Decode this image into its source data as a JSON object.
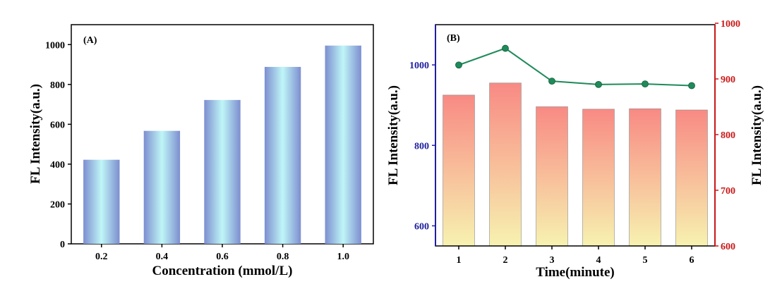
{
  "chart_data": [
    {
      "type": "bar",
      "panel_label": "(A)",
      "categories": [
        "0.2",
        "0.4",
        "0.6",
        "0.8",
        "1.0"
      ],
      "values": [
        422,
        567,
        722,
        888,
        995
      ],
      "xlabel": "Concentration (mmol/L)",
      "ylabel": "FL Intensity(a.u.)",
      "ylim": [
        0,
        1100
      ],
      "yticks": [
        "0",
        "200",
        "400",
        "600",
        "800",
        "1000"
      ],
      "grid": false,
      "colors": {
        "bar_edge": "#7b8fd0",
        "bar_center": "#b9f3f6"
      }
    },
    {
      "type": "bar+line",
      "panel_label": "(B)",
      "categories": [
        "1",
        "2",
        "3",
        "4",
        "5",
        "6"
      ],
      "xlabel": "Time(minute)",
      "bars": {
        "values": [
          925,
          955,
          896,
          890,
          891,
          888
        ],
        "axis": "left",
        "ylabel": "FL Intensity(a.u.)",
        "ylim": [
          550,
          1100
        ],
        "yticks": [
          "600",
          "800",
          "1000"
        ],
        "colors": {
          "top": "#f88a84",
          "bottom": "#f7f2b0"
        }
      },
      "line": {
        "values": [
          925,
          955,
          896,
          890,
          891,
          888
        ],
        "axis": "right",
        "ylabel": "FL Intensity(a.u.)",
        "ylim": [
          600,
          1000
        ],
        "yticks": [
          "600",
          "700",
          "800",
          "900",
          "1000"
        ],
        "color": "#1f8a5a"
      },
      "colors": {
        "left_axis": "#1f1fa0",
        "right_axis": "#c81818"
      },
      "grid": false
    }
  ]
}
